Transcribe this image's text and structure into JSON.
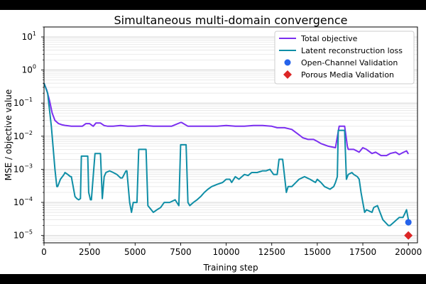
{
  "chart_data": {
    "type": "line",
    "title": "Simultaneous multi-domain convergence",
    "xlabel": "Training step",
    "ylabel": "MSE / objective value",
    "xlim": [
      0,
      20500
    ],
    "ylim": [
      6e-06,
      20
    ],
    "yscale": "log",
    "grid": true,
    "legend_position": "top-right",
    "x_ticks": [
      0,
      2500,
      5000,
      7500,
      10000,
      12500,
      15000,
      17500,
      20000
    ],
    "x_tick_labels": [
      "0",
      "2500",
      "5000",
      "7500",
      "10000",
      "12500",
      "15000",
      "17500",
      "20000"
    ],
    "y_ticks": [
      1e-05,
      0.0001,
      0.001,
      0.01,
      0.1,
      1,
      10
    ],
    "y_tick_labels": [
      {
        "base": "10",
        "exp": "−5"
      },
      {
        "base": "10",
        "exp": "−4"
      },
      {
        "base": "10",
        "exp": "−3"
      },
      {
        "base": "10",
        "exp": "−2"
      },
      {
        "base": "10",
        "exp": "−1"
      },
      {
        "base": "10",
        "exp": "0"
      },
      {
        "base": "10",
        "exp": "1"
      }
    ],
    "series": [
      {
        "name": "Total objective",
        "kind": "line",
        "color": "#7b2ff0",
        "x": [
          0,
          150,
          300,
          450,
          600,
          800,
          1000,
          1200,
          1500,
          1800,
          2100,
          2300,
          2500,
          2700,
          2850,
          3100,
          3300,
          3500,
          3800,
          4200,
          4600,
          5000,
          5500,
          6000,
          6500,
          7000,
          7500,
          7550,
          7900,
          8000,
          8500,
          9000,
          9500,
          10000,
          10500,
          11000,
          11500,
          12000,
          12500,
          12800,
          13200,
          13600,
          14000,
          14200,
          14500,
          14800,
          15000,
          15200,
          15600,
          16000,
          16200,
          16300,
          16500,
          16650,
          16700,
          17000,
          17300,
          17500,
          17700,
          18000,
          18200,
          18500,
          18800,
          19000,
          19300,
          19500,
          19700,
          19900,
          20000
        ],
        "y": [
          0.4,
          0.25,
          0.12,
          0.05,
          0.03,
          0.024,
          0.022,
          0.021,
          0.02,
          0.02,
          0.02,
          0.024,
          0.024,
          0.02,
          0.025,
          0.025,
          0.021,
          0.02,
          0.02,
          0.021,
          0.02,
          0.02,
          0.021,
          0.02,
          0.02,
          0.02,
          0.026,
          0.026,
          0.02,
          0.02,
          0.02,
          0.02,
          0.02,
          0.021,
          0.02,
          0.02,
          0.021,
          0.021,
          0.02,
          0.018,
          0.018,
          0.016,
          0.011,
          0.009,
          0.008,
          0.008,
          0.007,
          0.006,
          0.005,
          0.0045,
          0.02,
          0.02,
          0.02,
          0.005,
          0.004,
          0.004,
          0.0033,
          0.0045,
          0.004,
          0.003,
          0.0033,
          0.0026,
          0.0026,
          0.003,
          0.0033,
          0.0028,
          0.0032,
          0.0036,
          0.0029
        ]
      },
      {
        "name": "Latent reconstruction loss",
        "kind": "line",
        "color": "#0f8ea6",
        "x": [
          0,
          200,
          400,
          600,
          700,
          750,
          900,
          1100,
          1150,
          1300,
          1450,
          1500,
          1700,
          1800,
          1900,
          2000,
          2050,
          2100,
          2300,
          2400,
          2450,
          2550,
          2600,
          2800,
          2850,
          3100,
          3200,
          3300,
          3400,
          3600,
          3800,
          4000,
          4200,
          4300,
          4500,
          4550,
          4700,
          4800,
          4900,
          5100,
          5200,
          5400,
          5600,
          5700,
          6000,
          6200,
          6400,
          6600,
          6900,
          7200,
          7400,
          7500,
          7800,
          7900,
          8000,
          8200,
          8400,
          8600,
          8800,
          9000,
          9200,
          9500,
          9800,
          10000,
          10200,
          10300,
          10500,
          10700,
          11000,
          11200,
          11400,
          11600,
          11700,
          12000,
          12200,
          12400,
          12600,
          12800,
          12900,
          13100,
          13300,
          13400,
          13600,
          14000,
          14300,
          14600,
          14900,
          15000,
          15200,
          15400,
          15700,
          15900,
          16000,
          16100,
          16150,
          16200,
          16500,
          16600,
          16700,
          16900,
          17000,
          17200,
          17300,
          17400,
          17500,
          17600,
          17700,
          18000,
          18100,
          18300,
          18600,
          18900,
          19000,
          19200,
          19500,
          19700,
          19800,
          19900,
          20000
        ],
        "y": [
          0.4,
          0.2,
          0.02,
          0.001,
          0.0003,
          0.0003,
          0.0005,
          0.0007,
          0.0008,
          0.0007,
          0.0006,
          0.0006,
          0.00015,
          0.00013,
          0.00012,
          0.00013,
          0.0025,
          0.0025,
          0.0025,
          0.0025,
          0.0002,
          0.00012,
          0.00012,
          0.003,
          0.003,
          0.003,
          0.00013,
          0.0006,
          0.0008,
          0.0009,
          0.0008,
          0.0007,
          0.00055,
          0.00055,
          0.0009,
          0.0009,
          0.0001,
          5e-05,
          0.0001,
          0.0001,
          0.004,
          0.004,
          0.004,
          8e-05,
          5e-05,
          6e-05,
          7e-05,
          0.0001,
          0.0001,
          0.00012,
          8e-05,
          0.0055,
          0.0055,
          0.0001,
          8e-05,
          0.0001,
          0.00012,
          0.00015,
          0.0002,
          0.00025,
          0.0003,
          0.00035,
          0.0004,
          0.0005,
          0.0005,
          0.0004,
          0.0006,
          0.0005,
          0.0007,
          0.00065,
          0.0008,
          0.0008,
          0.0008,
          0.0009,
          0.0009,
          0.001,
          0.0007,
          0.0007,
          0.002,
          0.002,
          0.0002,
          0.0003,
          0.0003,
          0.0005,
          0.0006,
          0.0005,
          0.0004,
          0.0005,
          0.0004,
          0.0003,
          0.00025,
          0.0003,
          0.0004,
          0.0006,
          0.015,
          0.015,
          0.015,
          0.0005,
          0.0007,
          0.0008,
          0.0007,
          0.0006,
          0.0005,
          0.0002,
          0.0001,
          5e-05,
          6e-05,
          5e-05,
          7e-05,
          8e-05,
          3e-05,
          2e-05,
          2e-05,
          2.5e-05,
          3.5e-05,
          3.5e-05,
          4.5e-05,
          6e-05,
          3e-05
        ]
      },
      {
        "name": "Open-Channel Validation",
        "kind": "marker",
        "marker": "circle",
        "color": "#2563eb",
        "x": [
          20000
        ],
        "y": 2.5e-05
      },
      {
        "name": "Porous Media Validation",
        "kind": "marker",
        "marker": "diamond",
        "color": "#dc2626",
        "x": [
          20000
        ],
        "y": 1e-05
      }
    ]
  }
}
